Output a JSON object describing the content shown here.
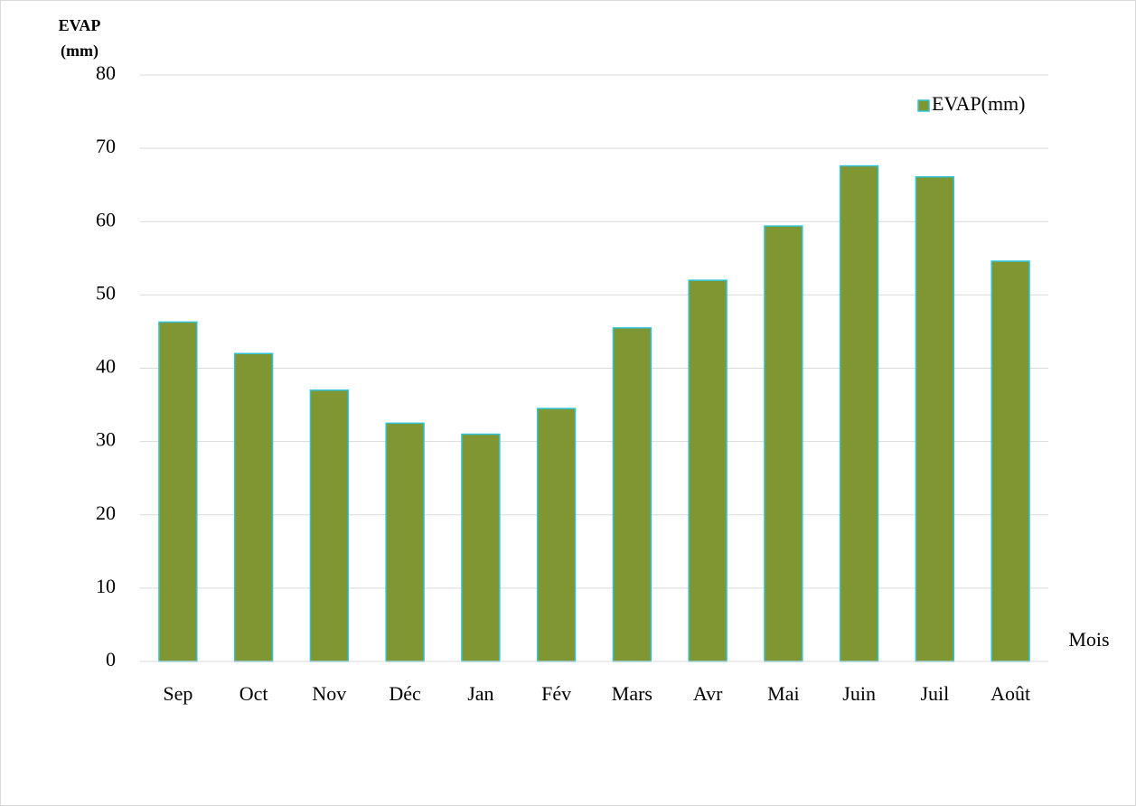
{
  "chart_data": {
    "type": "bar",
    "ylabel": [
      "EVAP",
      "(mm)"
    ],
    "xlabel": "Mois",
    "categories": [
      "Sep",
      "Oct",
      "Nov",
      "Déc",
      "Jan",
      "Fév",
      "Mars",
      "Avr",
      "Mai",
      "Juin",
      "Juil",
      "Août"
    ],
    "series": [
      {
        "name": "EVAP(mm)",
        "color": "#7f9633",
        "edge_color": "#2ec4d6",
        "values": [
          46.3,
          42,
          37,
          32.5,
          31,
          34.5,
          45.5,
          52,
          59.4,
          67.6,
          66.1,
          54.6
        ]
      }
    ],
    "ylim": [
      0,
      80
    ],
    "yticks": [
      0,
      10,
      20,
      30,
      40,
      50,
      60,
      70,
      80
    ],
    "grid": true,
    "legend": "top-right"
  }
}
